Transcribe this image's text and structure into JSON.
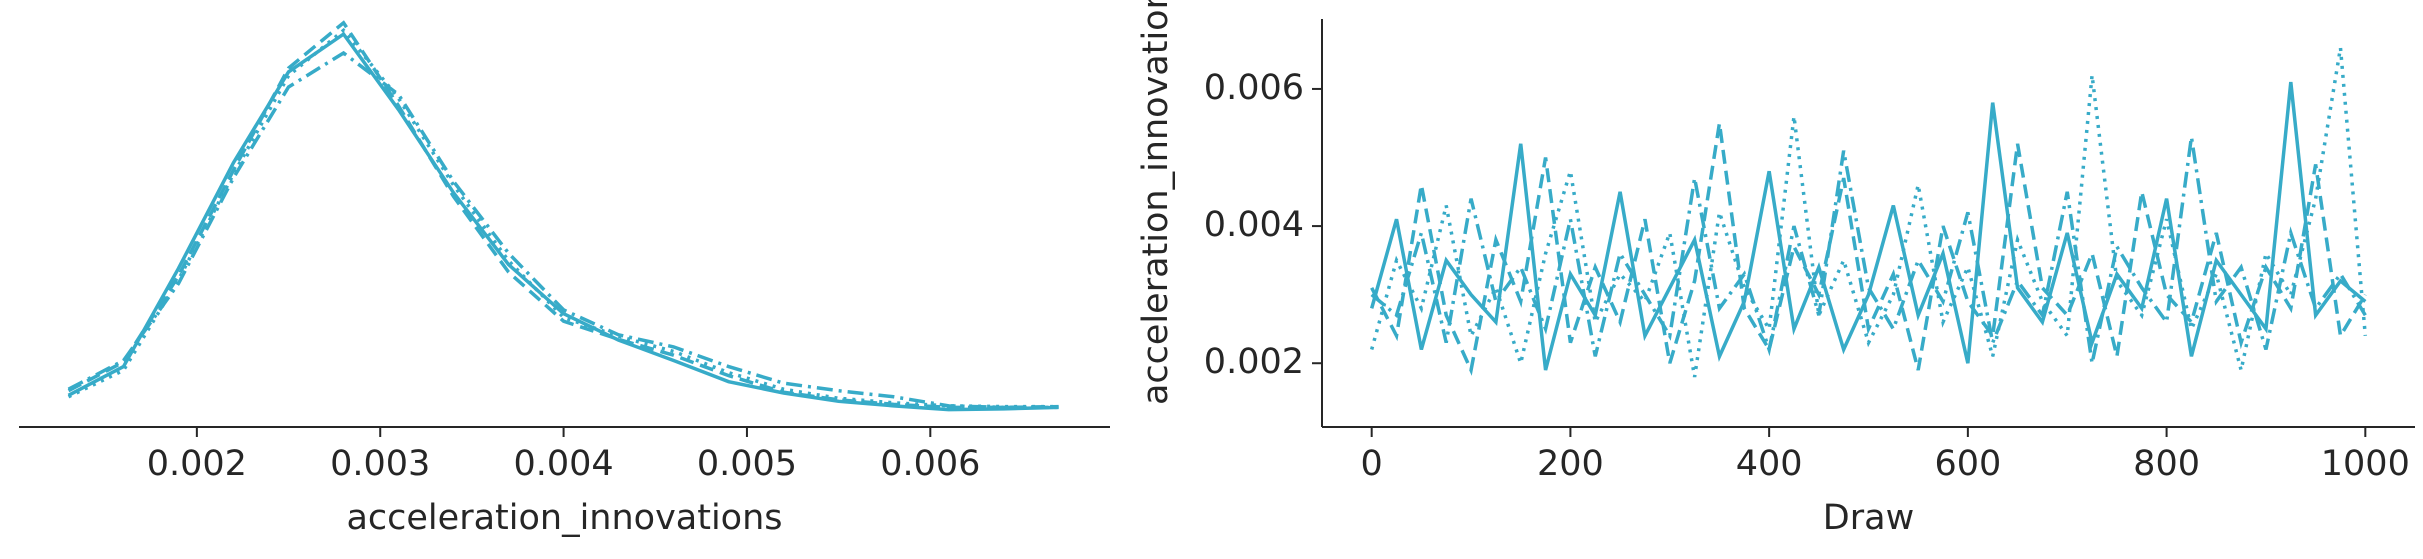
{
  "chart_data": [
    {
      "type": "line",
      "xlabel": "acceleration_innovations",
      "x": [
        0.0013,
        0.0016,
        0.0019,
        0.0022,
        0.0025,
        0.0028,
        0.0031,
        0.0034,
        0.0037,
        0.004,
        0.0043,
        0.0046,
        0.0049,
        0.0052,
        0.0055,
        0.0058,
        0.0061,
        0.0064,
        0.0067
      ],
      "series": [
        {
          "color": "#37abc8",
          "dash": "solid",
          "values": [
            22,
            60,
            190,
            330,
            450,
            500,
            400,
            290,
            195,
            130,
            95,
            68,
            40,
            25,
            14,
            8,
            3,
            4,
            6
          ]
        },
        {
          "color": "#37abc8",
          "dash": "dashed",
          "values": [
            28,
            66,
            180,
            320,
            455,
            515,
            405,
            285,
            185,
            120,
            96,
            75,
            48,
            26,
            16,
            10,
            6,
            6,
            7
          ]
        },
        {
          "color": "#37abc8",
          "dash": "dotted",
          "values": [
            20,
            55,
            175,
            315,
            445,
            505,
            415,
            300,
            200,
            125,
            100,
            80,
            52,
            30,
            18,
            12,
            8,
            7,
            7
          ]
        },
        {
          "color": "#37abc8",
          "dash": "dashdot",
          "values": [
            30,
            68,
            170,
            310,
            430,
            475,
            420,
            305,
            210,
            135,
            102,
            86,
            60,
            38,
            28,
            20,
            8,
            6,
            6
          ]
        }
      ],
      "xlim": [
        0.00103,
        0.00698
      ],
      "ylim": [
        -20,
        520
      ],
      "xticks": [
        0.002,
        0.003,
        0.004,
        0.005,
        0.006
      ],
      "spines": [
        "bottom"
      ]
    },
    {
      "type": "line",
      "xlabel": "Draw",
      "ylabel": "acceleration_innovations",
      "x": [
        0,
        25,
        50,
        75,
        100,
        125,
        150,
        175,
        200,
        225,
        250,
        275,
        300,
        325,
        350,
        375,
        400,
        425,
        450,
        475,
        500,
        525,
        550,
        575,
        600,
        625,
        650,
        675,
        700,
        725,
        750,
        775,
        800,
        825,
        850,
        875,
        900,
        925,
        950,
        975,
        1000
      ],
      "series": [
        {
          "color": "#37abc8",
          "dash": "solid",
          "values": [
            0.0028,
            0.0041,
            0.0022,
            0.0035,
            0.003,
            0.0026,
            0.0052,
            0.0019,
            0.0033,
            0.0027,
            0.0045,
            0.0024,
            0.0031,
            0.0038,
            0.0021,
            0.0029,
            0.0048,
            0.0025,
            0.0034,
            0.0022,
            0.003,
            0.0043,
            0.0027,
            0.0036,
            0.002,
            0.0058,
            0.0031,
            0.0026,
            0.0039,
            0.0023,
            0.0033,
            0.0028,
            0.0044,
            0.0021,
            0.0035,
            0.003,
            0.0025,
            0.0061,
            0.0027,
            0.0032,
            0.0029
          ]
        },
        {
          "color": "#37abc8",
          "dash": "dashed",
          "values": [
            0.0031,
            0.0024,
            0.0046,
            0.0027,
            0.0019,
            0.0038,
            0.0029,
            0.005,
            0.0023,
            0.0034,
            0.0026,
            0.0041,
            0.002,
            0.0032,
            0.0055,
            0.0028,
            0.0022,
            0.0037,
            0.003,
            0.0047,
            0.0025,
            0.0033,
            0.0019,
            0.004,
            0.0029,
            0.0024,
            0.0052,
            0.0031,
            0.0027,
            0.0036,
            0.0021,
            0.0045,
            0.003,
            0.0026,
            0.0039,
            0.0023,
            0.0034,
            0.0028,
            0.0049,
            0.0024,
            0.003
          ]
        },
        {
          "color": "#37abc8",
          "dash": "dotted",
          "values": [
            0.0022,
            0.0035,
            0.0028,
            0.0043,
            0.0024,
            0.0031,
            0.002,
            0.0036,
            0.0048,
            0.0026,
            0.0033,
            0.0029,
            0.0039,
            0.0018,
            0.0042,
            0.0031,
            0.0025,
            0.0056,
            0.0027,
            0.0035,
            0.0023,
            0.003,
            0.0046,
            0.0026,
            0.0034,
            0.0021,
            0.0038,
            0.0029,
            0.0024,
            0.0062,
            0.0032,
            0.0027,
            0.0041,
            0.0025,
            0.0033,
            0.0019,
            0.0036,
            0.003,
            0.0044,
            0.0066,
            0.0024
          ]
        },
        {
          "color": "#37abc8",
          "dash": "dashdot",
          "values": [
            0.003,
            0.0027,
            0.0039,
            0.0023,
            0.0044,
            0.0029,
            0.0034,
            0.0025,
            0.0041,
            0.0021,
            0.0036,
            0.003,
            0.0024,
            0.0047,
            0.0028,
            0.0033,
            0.0022,
            0.004,
            0.0027,
            0.0051,
            0.0031,
            0.0025,
            0.0035,
            0.0029,
            0.0042,
            0.0023,
            0.0032,
            0.0027,
            0.0045,
            0.002,
            0.0037,
            0.0031,
            0.0026,
            0.0053,
            0.0029,
            0.0034,
            0.0022,
            0.0039,
            0.0028,
            0.0033,
            0.0027
          ]
        }
      ],
      "xlim": [
        -50,
        1050
      ],
      "ylim": [
        0.00107,
        0.00702
      ],
      "xticks": [
        0,
        200,
        400,
        600,
        800,
        1000
      ],
      "yticks": [
        0.002,
        0.004,
        0.006
      ],
      "spines": [
        "bottom",
        "left"
      ]
    }
  ]
}
